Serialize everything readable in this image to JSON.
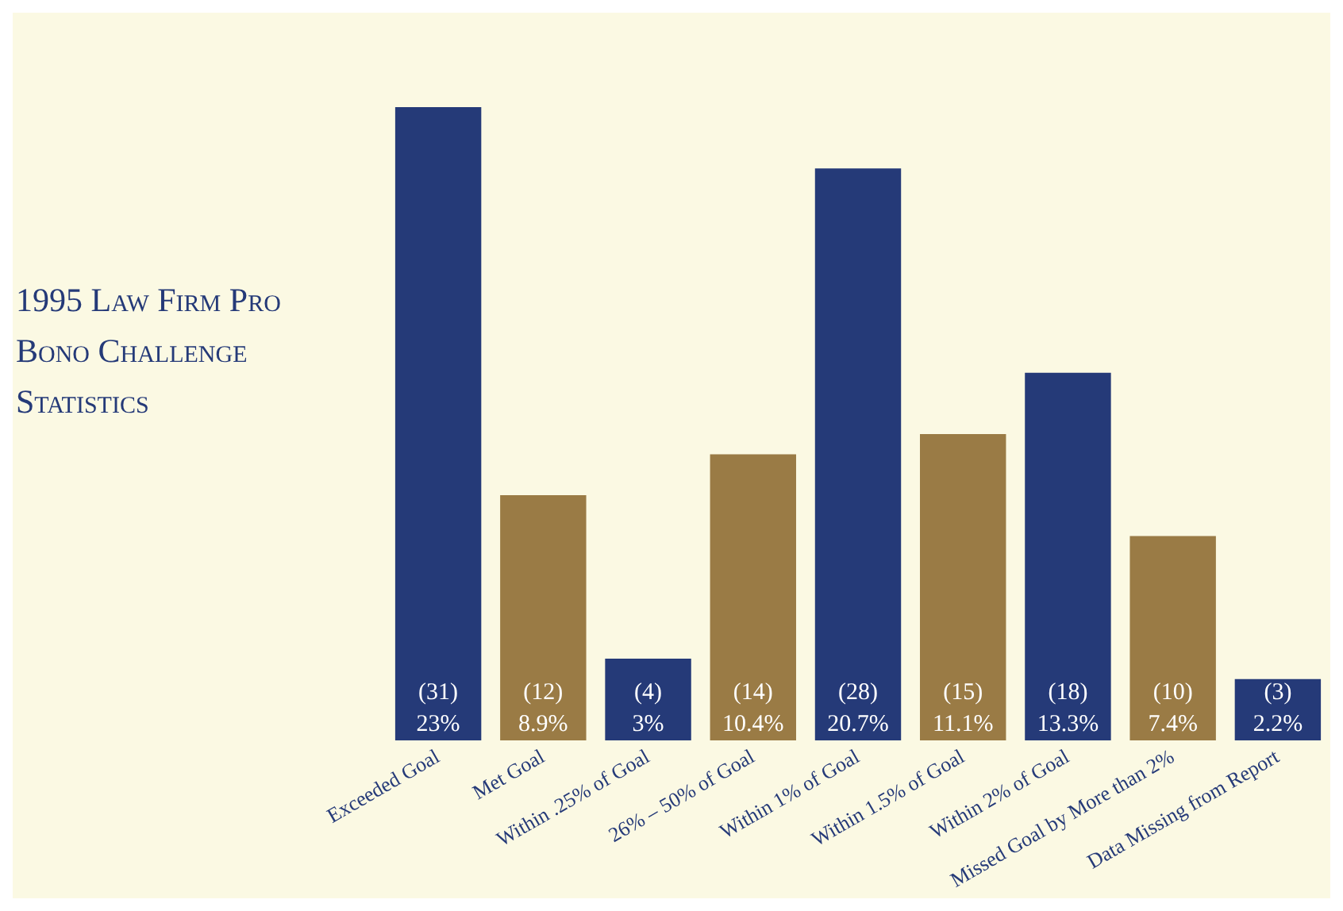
{
  "chart_data": {
    "type": "bar",
    "title": "1995 Law Firm Pro Bono Challenge Statistics",
    "categories": [
      "Exceeded Goal",
      "Met Goal",
      "Within .25% of Goal",
      "26% – 50% of Goal",
      "Within 1% of Goal",
      "Within 1.5% of Goal",
      "Within 2% of Goal",
      "Missed Goal by More than 2%",
      "Data Missing from Report"
    ],
    "values": [
      31,
      12,
      4,
      14,
      28,
      15,
      18,
      10,
      3
    ],
    "colors": [
      "#253a78",
      "#9a7b45",
      "#253a78",
      "#9a7b45",
      "#253a78",
      "#9a7b45",
      "#253a78",
      "#9a7b45",
      "#253a78"
    ],
    "value_labels": [
      "(31)\n23%",
      "(12)\n8.9%",
      "(4)\n3%",
      "(14)\n10.4%",
      "(28)\n20.7%",
      "(15)\n11.1%",
      "(18)\n13.3%",
      "(10)\n7.4%",
      "(3)\n2.2%"
    ],
    "grid": false,
    "legend": false
  }
}
